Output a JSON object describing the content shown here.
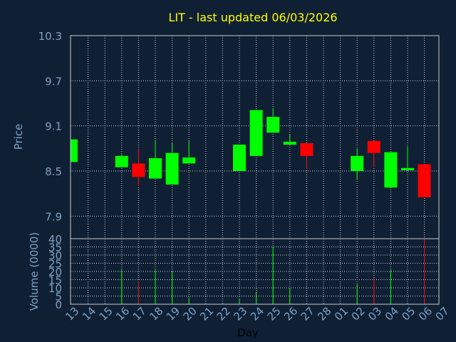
{
  "chart_data": {
    "type": "candlestick",
    "title": "LIT - last updated 06/03/2026",
    "price_axis": {
      "label": "Price",
      "ylim": [
        7.6,
        10.3
      ],
      "ticks": [
        "10.3",
        "9.7",
        "9.1",
        "8.5",
        "7.9"
      ]
    },
    "volume_axis": {
      "label": "Volume (0000)",
      "ylim": [
        0,
        40
      ],
      "ticks": [
        "40",
        "35",
        "30",
        "25",
        "20",
        "15",
        "10",
        "5",
        "0"
      ]
    },
    "x_axis": {
      "label": "Day",
      "ticks": [
        "13",
        "14",
        "15",
        "16",
        "17",
        "18",
        "19",
        "20",
        "21",
        "22",
        "23",
        "24",
        "25",
        "26",
        "27",
        "28",
        "01",
        "02",
        "03",
        "04",
        "05",
        "06",
        "07"
      ]
    },
    "grid": true,
    "colors": {
      "up": "#00ff00",
      "down": "#ff0000",
      "title": "#ffff00",
      "axis_text": "#7fa0c0",
      "grid": "#c8c8c8",
      "background": "#0f2035"
    },
    "candles": [
      {
        "day": "13",
        "open": 8.62,
        "high": 8.92,
        "low": 8.62,
        "close": 8.92,
        "volume": 0
      },
      {
        "day": "16",
        "open": 8.55,
        "high": 8.72,
        "low": 8.55,
        "close": 8.7,
        "volume": 21
      },
      {
        "day": "17",
        "open": 8.6,
        "high": 8.8,
        "low": 8.3,
        "close": 8.42,
        "volume": 14
      },
      {
        "day": "18",
        "open": 8.4,
        "high": 8.9,
        "low": 8.4,
        "close": 8.67,
        "volume": 21
      },
      {
        "day": "19",
        "open": 8.32,
        "high": 8.87,
        "low": 8.32,
        "close": 8.74,
        "volume": 20
      },
      {
        "day": "20",
        "open": 8.6,
        "high": 8.9,
        "low": 8.6,
        "close": 8.68,
        "volume": 4
      },
      {
        "day": "23",
        "open": 8.5,
        "high": 8.85,
        "low": 8.5,
        "close": 8.85,
        "volume": 3
      },
      {
        "day": "24",
        "open": 8.7,
        "high": 9.31,
        "low": 8.7,
        "close": 9.31,
        "volume": 7
      },
      {
        "day": "25",
        "open": 9.01,
        "high": 9.33,
        "low": 9.01,
        "close": 9.22,
        "volume": 35
      },
      {
        "day": "26",
        "open": 8.85,
        "high": 8.98,
        "low": 8.85,
        "close": 8.89,
        "volume": 10
      },
      {
        "day": "27",
        "open": 8.87,
        "high": 8.87,
        "low": 8.52,
        "close": 8.7,
        "volume": 0
      },
      {
        "day": "02",
        "open": 8.5,
        "high": 8.8,
        "low": 8.39,
        "close": 8.7,
        "volume": 12
      },
      {
        "day": "03",
        "open": 8.9,
        "high": 8.9,
        "low": 8.55,
        "close": 8.74,
        "volume": 16
      },
      {
        "day": "04",
        "open": 8.28,
        "high": 8.75,
        "low": 8.28,
        "close": 8.75,
        "volume": 21
      },
      {
        "day": "05",
        "open": 8.51,
        "high": 8.83,
        "low": 8.51,
        "close": 8.54,
        "volume": 0
      },
      {
        "day": "06",
        "open": 8.59,
        "high": 8.59,
        "low": 8.15,
        "close": 8.15,
        "volume": 40
      }
    ]
  }
}
